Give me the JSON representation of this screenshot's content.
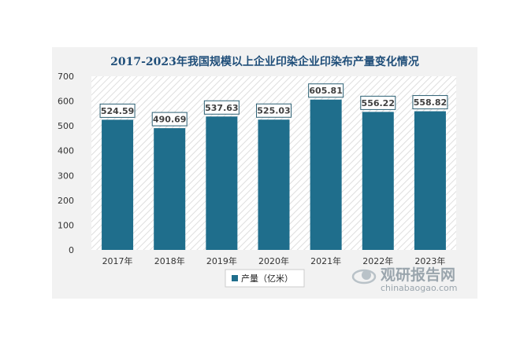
{
  "chart_data": {
    "type": "bar",
    "title": "2017-2023年我国规模以上企业印染企业印染布产量变化情况",
    "categories": [
      "2017年",
      "2018年",
      "2019年",
      "2020年",
      "2021年",
      "2022年",
      "2023年"
    ],
    "series": [
      {
        "name": "产量（亿米）",
        "values": [
          524.59,
          490.69,
          537.63,
          525.03,
          605.81,
          556.22,
          558.82
        ],
        "color": "#1f6e8c"
      }
    ],
    "data_labels": [
      "524.59",
      "490.69",
      "537.63",
      "525.03",
      "605.81",
      "556.22",
      "558.82"
    ],
    "ylim": [
      0,
      700
    ],
    "yticks": [
      0,
      100,
      200,
      300,
      400,
      500,
      600,
      700
    ],
    "xlabel": "",
    "ylabel": "",
    "grid": false,
    "legend": "bottom-center"
  },
  "watermark": {
    "text": "观研报告网",
    "url_text": "chinabaogao.com",
    "icon": "globe-swoosh-icon"
  }
}
